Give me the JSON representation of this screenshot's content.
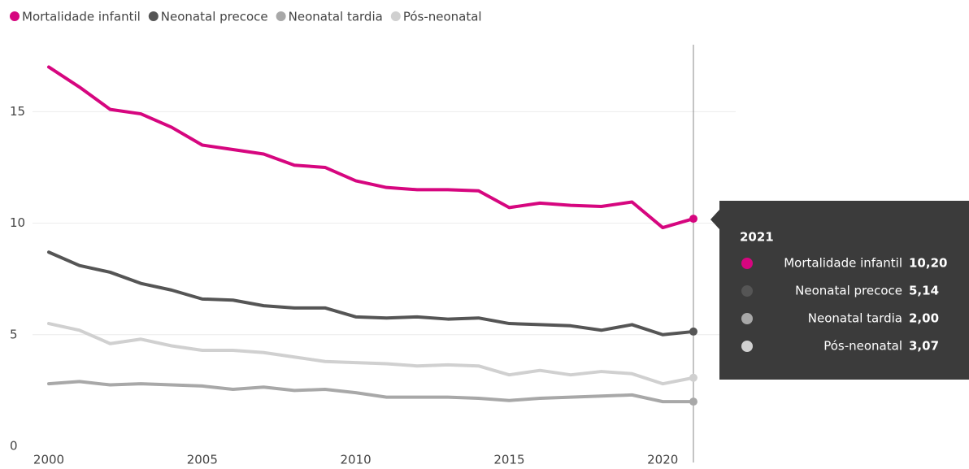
{
  "chart_data": {
    "type": "line",
    "x": [
      2000,
      2001,
      2002,
      2003,
      2004,
      2005,
      2006,
      2007,
      2008,
      2009,
      2010,
      2011,
      2012,
      2013,
      2014,
      2015,
      2016,
      2017,
      2018,
      2019,
      2020,
      2021
    ],
    "series": [
      {
        "name": "Mortalidade infantil",
        "color": "#d6067f",
        "values": [
          17.0,
          16.1,
          15.1,
          14.9,
          14.3,
          13.5,
          13.3,
          13.1,
          12.6,
          12.5,
          11.9,
          11.6,
          11.5,
          11.5,
          11.45,
          10.7,
          10.9,
          10.8,
          10.75,
          10.95,
          9.8,
          10.2
        ],
        "value_labels": [
          null,
          null,
          null,
          null,
          null,
          null,
          null,
          null,
          null,
          null,
          null,
          null,
          null,
          null,
          null,
          null,
          null,
          null,
          null,
          null,
          null,
          "10,20"
        ]
      },
      {
        "name": "Neonatal precoce",
        "color": "#555555",
        "values": [
          8.7,
          8.1,
          7.8,
          7.3,
          7.0,
          6.6,
          6.55,
          6.3,
          6.2,
          6.2,
          5.8,
          5.75,
          5.8,
          5.7,
          5.75,
          5.5,
          5.45,
          5.4,
          5.2,
          5.45,
          5.0,
          5.14
        ],
        "value_labels": [
          null,
          null,
          null,
          null,
          null,
          null,
          null,
          null,
          null,
          null,
          null,
          null,
          null,
          null,
          null,
          null,
          null,
          null,
          null,
          null,
          null,
          "5,14"
        ]
      },
      {
        "name": "Neonatal tardia",
        "color": "#a8a8a8",
        "values": [
          2.8,
          2.9,
          2.75,
          2.8,
          2.75,
          2.7,
          2.55,
          2.65,
          2.5,
          2.55,
          2.4,
          2.2,
          2.2,
          2.2,
          2.15,
          2.05,
          2.15,
          2.2,
          2.25,
          2.3,
          2.0,
          2.0
        ],
        "value_labels": [
          null,
          null,
          null,
          null,
          null,
          null,
          null,
          null,
          null,
          null,
          null,
          null,
          null,
          null,
          null,
          null,
          null,
          null,
          null,
          null,
          null,
          "2,00"
        ]
      },
      {
        "name": "Pós-neonatal",
        "color": "#d0d0d0",
        "values": [
          5.5,
          5.2,
          4.6,
          4.8,
          4.5,
          4.3,
          4.3,
          4.2,
          4.0,
          3.8,
          3.75,
          3.7,
          3.6,
          3.65,
          3.6,
          3.2,
          3.4,
          3.2,
          3.35,
          3.25,
          2.8,
          3.07
        ],
        "value_labels": [
          null,
          null,
          null,
          null,
          null,
          null,
          null,
          null,
          null,
          null,
          null,
          null,
          null,
          null,
          null,
          null,
          null,
          null,
          null,
          null,
          null,
          "3,07"
        ]
      }
    ],
    "xlim": [
      2000,
      2021
    ],
    "xticks": [
      2000,
      2005,
      2010,
      2015,
      2020
    ],
    "ylim": [
      0,
      18
    ],
    "yticks": [
      0,
      5,
      10,
      15
    ],
    "grid": true,
    "legend": "top-left"
  }
}
